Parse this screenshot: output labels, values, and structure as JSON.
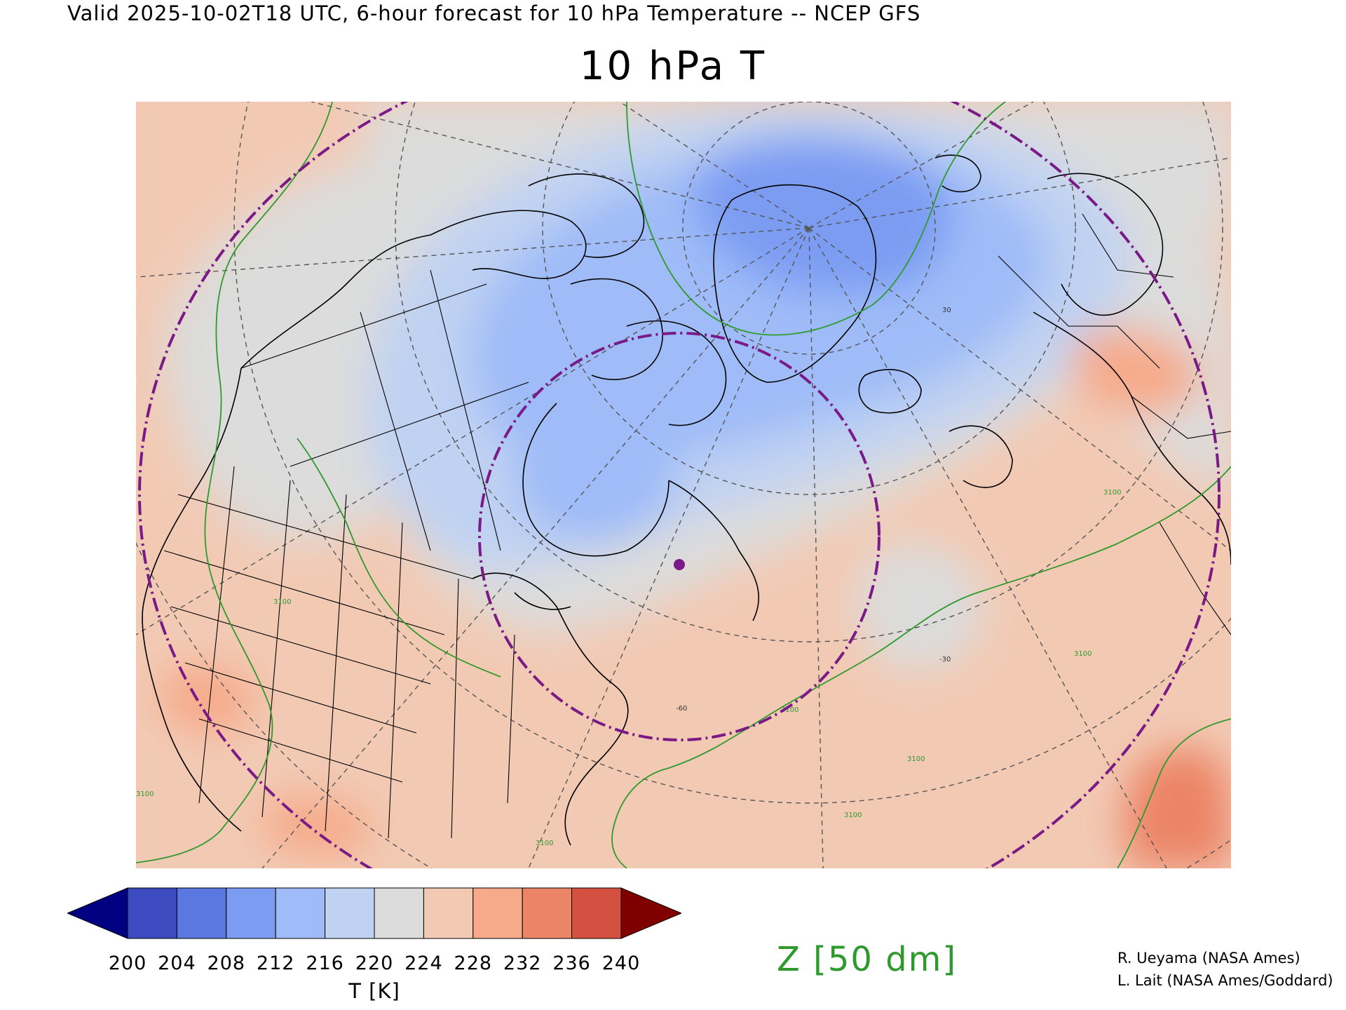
{
  "header": {
    "valid_line": "Valid 2025-10-02T18 UTC, 6-hour forecast for 10 hPa Temperature -- NCEP GFS",
    "title": "10 hPa T"
  },
  "map": {
    "field": "10 hPa Temperature",
    "projection": "polar-stereographic (north)",
    "contour_labels": [
      "3100",
      "3100",
      "3100",
      "3100",
      "3100",
      "3100",
      "3100",
      "3100"
    ],
    "graticule_labels": [
      "-60",
      "-30",
      "30"
    ],
    "colors": {
      "contour": "#2e9a2e",
      "ring": "#7a1a86",
      "coast": "#000000",
      "grid": "#555555"
    }
  },
  "colorbar": {
    "label": "T [K]",
    "ticks": [
      "200",
      "204",
      "208",
      "212",
      "216",
      "220",
      "224",
      "228",
      "232",
      "236",
      "240"
    ],
    "under_color": "#000080",
    "over_color": "#800000",
    "bins": [
      "#3c4bc0",
      "#5a78e0",
      "#7c9cf2",
      "#9fbcf8",
      "#c0d2f2",
      "#dcdcdc",
      "#f2cab4",
      "#f6aa8a",
      "#ec8466",
      "#d45040"
    ]
  },
  "overlay_label": "Z [50 dm]",
  "credits": [
    "R. Ueyama (NASA Ames)",
    "L. Lait (NASA Ames/Goddard)"
  ]
}
